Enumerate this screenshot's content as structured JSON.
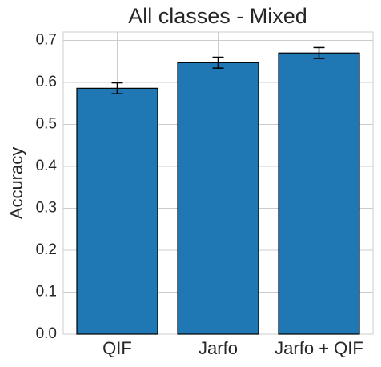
{
  "chart_data": {
    "type": "bar",
    "title": "All classes - Mixed",
    "y_label": "Accuracy",
    "categories": [
      "QIF",
      "Jarfo",
      "Jarfo + QIF"
    ],
    "values": [
      0.586,
      0.647,
      0.67
    ],
    "errors": [
      0.013,
      0.013,
      0.013
    ],
    "color": "#1f77b4",
    "ylim": [
      0,
      0.72
    ],
    "yticks": [
      {
        "value": 0,
        "label": "0.0"
      },
      0.1,
      0.2,
      0.3,
      0.4,
      0.5,
      0.6,
      0.7
    ],
    "grid": true
  }
}
